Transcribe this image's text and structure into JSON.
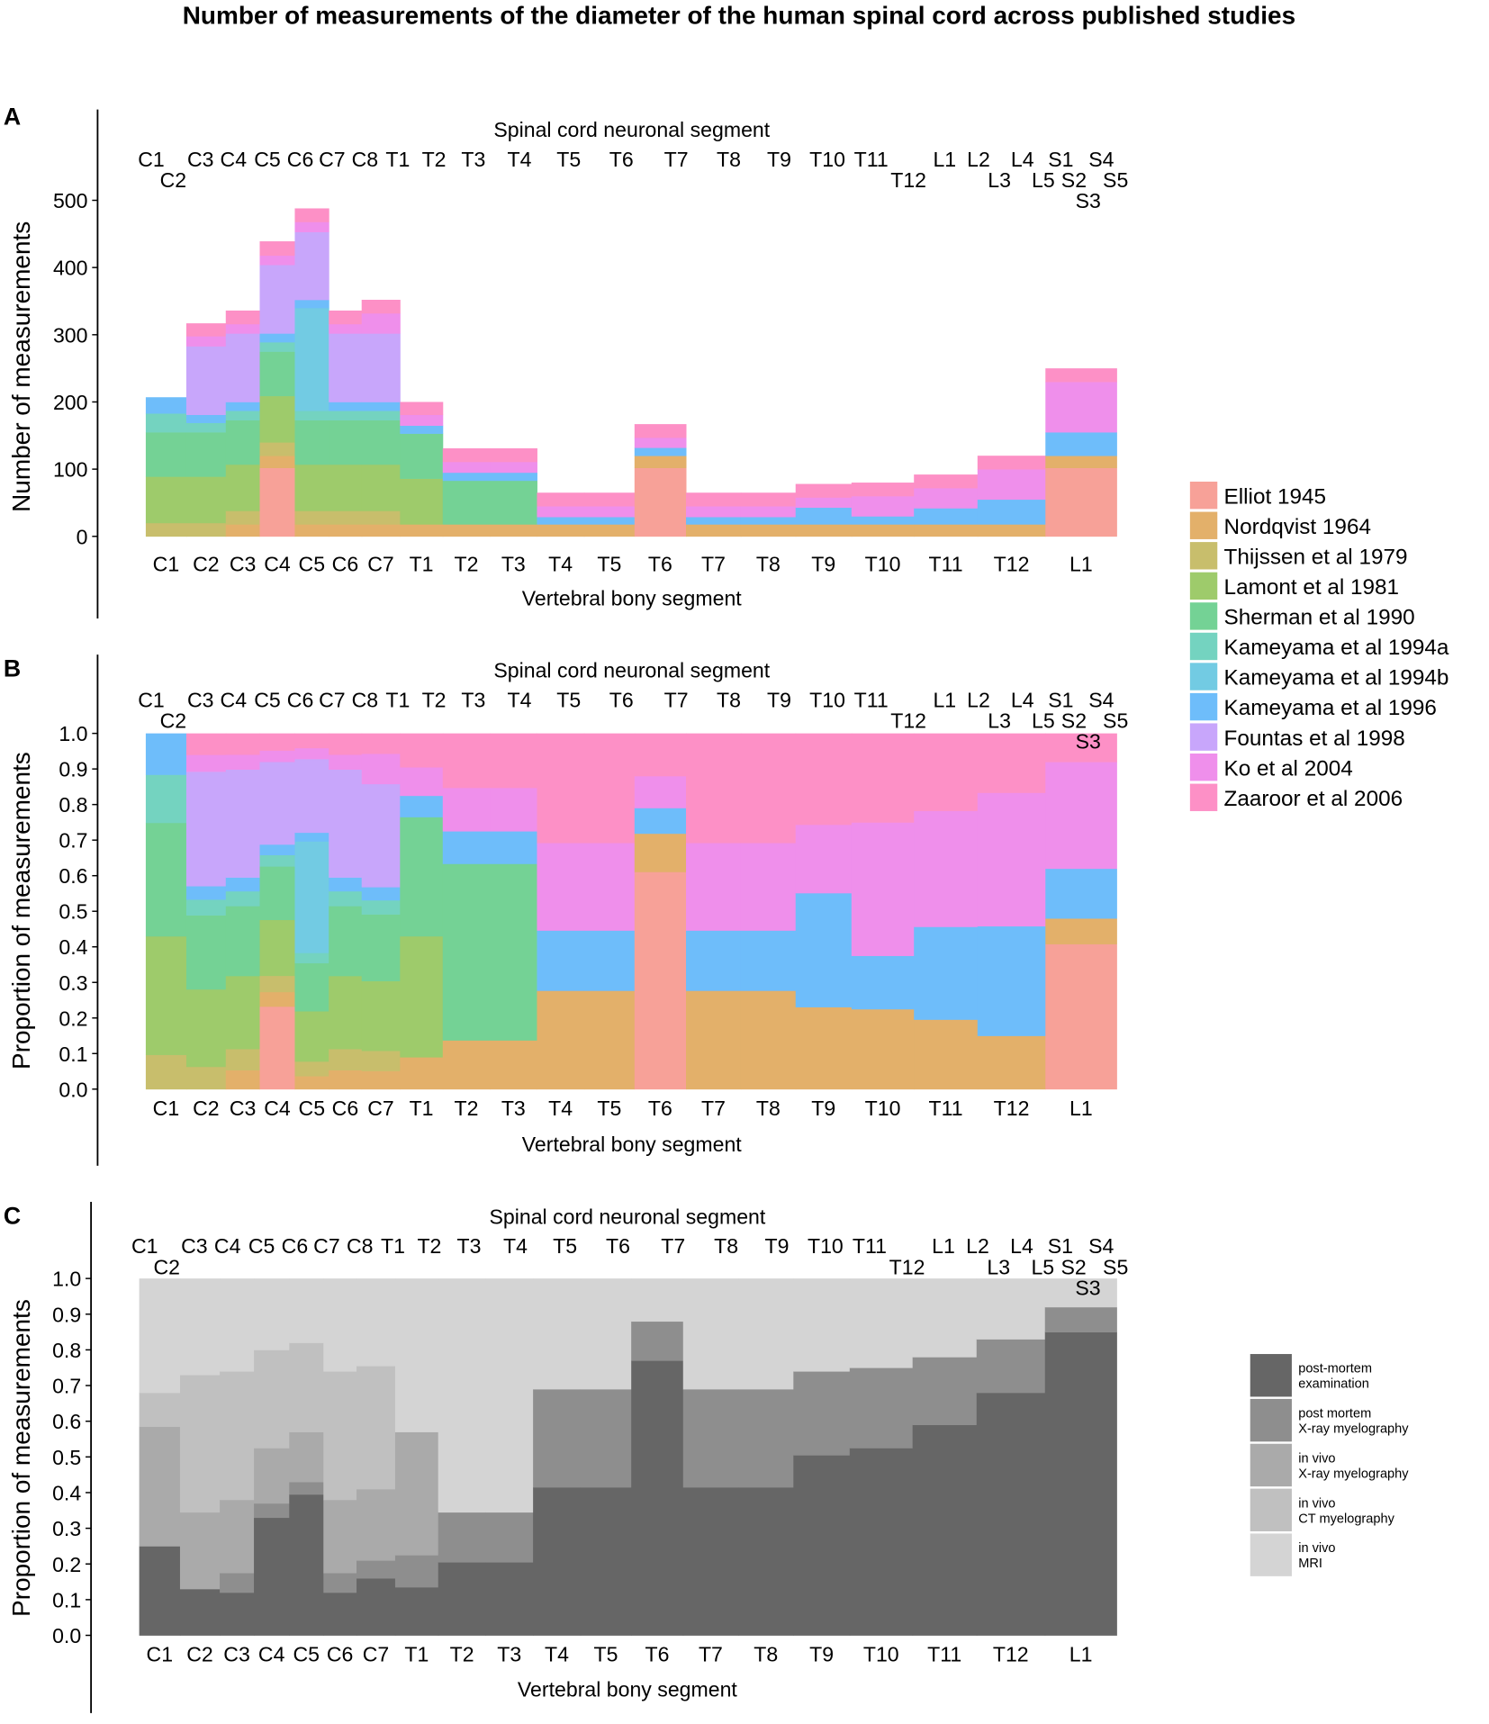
{
  "title": "Number of measurements of the diameter of the human spinal cord across published studies",
  "chart_data": [
    {
      "panel": "A",
      "type": "bar",
      "stacked": true,
      "top_axis_title": "Spinal cord neuronal segment",
      "xlabel": "Vertebral bony segment",
      "ylabel": "Number of measurements",
      "ylim": [
        0,
        500
      ],
      "yticks": [
        "0",
        "100",
        "200",
        "300",
        "400",
        "500"
      ],
      "ytick_values": [
        0,
        100,
        200,
        300,
        400,
        500
      ],
      "legend_position": "right",
      "mode": "counts"
    },
    {
      "panel": "B",
      "type": "bar",
      "stacked": true,
      "top_axis_title": "Spinal cord neuronal segment",
      "xlabel": "Vertebral bony segment",
      "ylabel": "Proportion of measurements",
      "ylim": [
        0,
        1
      ],
      "yticks": [
        "0.0",
        "0.1",
        "0.2",
        "0.3",
        "0.4",
        "0.5",
        "0.6",
        "0.7",
        "0.8",
        "0.9",
        "1.0"
      ],
      "ytick_values": [
        0,
        0.1,
        0.2,
        0.3,
        0.4,
        0.5,
        0.6,
        0.7,
        0.8,
        0.9,
        1.0
      ],
      "mode": "proportions of panel A counts"
    },
    {
      "panel": "C",
      "type": "bar",
      "stacked": true,
      "top_axis_title": "Spinal cord neuronal segment",
      "xlabel": "Vertebral bony segment",
      "ylabel": "Proportion of measurements",
      "ylim": [
        0,
        1
      ],
      "yticks": [
        "0.0",
        "0.1",
        "0.2",
        "0.3",
        "0.4",
        "0.5",
        "0.6",
        "0.7",
        "0.8",
        "0.9",
        "1.0"
      ],
      "ytick_values": [
        0,
        0.1,
        0.2,
        0.3,
        0.4,
        0.5,
        0.6,
        0.7,
        0.8,
        0.9,
        1.0
      ],
      "legend_position": "right"
    }
  ],
  "vertebral_segments": [
    "C1",
    "C2",
    "C3",
    "C4",
    "C5",
    "C6",
    "C7",
    "T1",
    "T2",
    "T3",
    "T4",
    "T5",
    "T6",
    "T7",
    "T8",
    "T9",
    "T10",
    "T11",
    "T12",
    "L1"
  ],
  "vertebral_lengths_mm": [
    18.5,
    18,
    15.5,
    16,
    15.5,
    15,
    17.5,
    19.5,
    21.5,
    21.5,
    21.5,
    23,
    23.5,
    25,
    25,
    25.5,
    28.5,
    29,
    31,
    32.5
  ],
  "neuronal_segments": [
    "C1",
    "C2",
    "C3",
    "C4",
    "C5",
    "C6",
    "C7",
    "C8",
    "T1",
    "T2",
    "T3",
    "T4",
    "T5",
    "T6",
    "T7",
    "T8",
    "T9",
    "T10",
    "T11",
    "T12",
    "L1",
    "L2",
    "L3",
    "L4",
    "L5",
    "S1",
    "S2",
    "S3",
    "S4",
    "S5"
  ],
  "neuronal_positions_mm": [
    2.5,
    12.5,
    25,
    40,
    55.5,
    70.5,
    85,
    100,
    115,
    131.5,
    149.5,
    170.5,
    193,
    217,
    242,
    266,
    289,
    311,
    331,
    348,
    364.5,
    380,
    389.5,
    400,
    409.5,
    417.5,
    423.5,
    430,
    436,
    442.5
  ],
  "studies": [
    {
      "name": "Elliot 1945",
      "color": "#F7A198"
    },
    {
      "name": "Nordqvist 1964",
      "color": "#E3B06A"
    },
    {
      "name": "Thijssen et al 1979",
      "color": "#C8BE6C"
    },
    {
      "name": "Lamont et al 1981",
      "color": "#9ECB6B"
    },
    {
      "name": "Sherman et al 1990",
      "color": "#74D295"
    },
    {
      "name": "Kameyama et al 1994a",
      "color": "#74D3C0"
    },
    {
      "name": "Kameyama et al 1994b",
      "color": "#72CBE3"
    },
    {
      "name": "Kameyama et al 1996",
      "color": "#6EBDFA"
    },
    {
      "name": "Fountas et al 1998",
      "color": "#C8A6FB"
    },
    {
      "name": "Ko et al 2004",
      "color": "#EF8FEB"
    },
    {
      "name": "Zaaroor et al 2006",
      "color": "#FD90C6"
    }
  ],
  "counts": [
    [
      0,
      0,
      20,
      69,
      66,
      28,
      0,
      24,
      0,
      0,
      0
    ],
    [
      0,
      0,
      20,
      69,
      66,
      14,
      0,
      12,
      102,
      15,
      19
    ],
    [
      0,
      18,
      20,
      69,
      66,
      14,
      0,
      13,
      102,
      14,
      20
    ],
    [
      102,
      18,
      20,
      69,
      66,
      14,
      0,
      13,
      102,
      14,
      21
    ],
    [
      0,
      18,
      20,
      69,
      66,
      14,
      153,
      12,
      101,
      15,
      20
    ],
    [
      0,
      18,
      20,
      69,
      66,
      14,
      0,
      13,
      102,
      14,
      20
    ],
    [
      0,
      18,
      20,
      69,
      66,
      14,
      0,
      13,
      102,
      30,
      20
    ],
    [
      0,
      18,
      0,
      68,
      67,
      0,
      0,
      12,
      0,
      16,
      19
    ],
    [
      0,
      18,
      0,
      0,
      65,
      0,
      0,
      12,
      0,
      16,
      20
    ],
    [
      0,
      18,
      0,
      0,
      65,
      0,
      0,
      12,
      0,
      16,
      20
    ],
    [
      0,
      18,
      0,
      0,
      0,
      0,
      0,
      11,
      0,
      16,
      20
    ],
    [
      0,
      18,
      0,
      0,
      0,
      0,
      0,
      11,
      0,
      16,
      20
    ],
    [
      102,
      18,
      0,
      0,
      0,
      0,
      0,
      12,
      0,
      15,
      20
    ],
    [
      0,
      18,
      0,
      0,
      0,
      0,
      0,
      11,
      0,
      16,
      20
    ],
    [
      0,
      18,
      0,
      0,
      0,
      0,
      0,
      11,
      0,
      16,
      20
    ],
    [
      0,
      18,
      0,
      0,
      0,
      0,
      0,
      25,
      0,
      15,
      20
    ],
    [
      0,
      18,
      0,
      0,
      0,
      0,
      0,
      12,
      0,
      30,
      20
    ],
    [
      0,
      18,
      0,
      0,
      0,
      0,
      0,
      24,
      0,
      30,
      20
    ],
    [
      0,
      18,
      0,
      0,
      0,
      0,
      0,
      37,
      0,
      45,
      20
    ],
    [
      102,
      18,
      0,
      0,
      0,
      0,
      0,
      35,
      0,
      75,
      20
    ]
  ],
  "methods": [
    {
      "line1": "post-mortem",
      "line2": "examination",
      "color": "#666666"
    },
    {
      "line1": "post mortem",
      "line2": "X-ray myelography",
      "color": "#8E8E8E"
    },
    {
      "line1": "in vivo",
      "line2": "X-ray myelography",
      "color": "#AAAAAA"
    },
    {
      "line1": "in vivo",
      "line2": "CT myelography",
      "color": "#C0C0C0"
    },
    {
      "line1": "in vivo",
      "line2": "MRI",
      "color": "#D4D4D4"
    }
  ],
  "method_proportions": [
    [
      0.25,
      0,
      0.335,
      0.095,
      0.32
    ],
    [
      0.13,
      0,
      0.215,
      0.385,
      0.27
    ],
    [
      0.12,
      0.055,
      0.205,
      0.36,
      0.26
    ],
    [
      0.33,
      0.04,
      0.155,
      0.275,
      0.2
    ],
    [
      0.395,
      0.035,
      0.14,
      0.25,
      0.18
    ],
    [
      0.12,
      0.055,
      0.205,
      0.36,
      0.26
    ],
    [
      0.16,
      0.05,
      0.2,
      0.345,
      0.245
    ],
    [
      0.135,
      0.09,
      0.345,
      0,
      0.43
    ],
    [
      0.205,
      0.14,
      0,
      0,
      0.655
    ],
    [
      0.205,
      0.14,
      0,
      0,
      0.655
    ],
    [
      0.415,
      0.275,
      0,
      0,
      0.31
    ],
    [
      0.415,
      0.275,
      0,
      0,
      0.31
    ],
    [
      0.77,
      0.11,
      0,
      0,
      0.12
    ],
    [
      0.415,
      0.275,
      0,
      0,
      0.31
    ],
    [
      0.415,
      0.275,
      0,
      0,
      0.31
    ],
    [
      0.505,
      0.235,
      0,
      0,
      0.26
    ],
    [
      0.525,
      0.225,
      0,
      0,
      0.25
    ],
    [
      0.59,
      0.19,
      0,
      0,
      0.22
    ],
    [
      0.68,
      0.15,
      0,
      0,
      0.17
    ],
    [
      0.85,
      0.07,
      0,
      0,
      0.08
    ]
  ]
}
